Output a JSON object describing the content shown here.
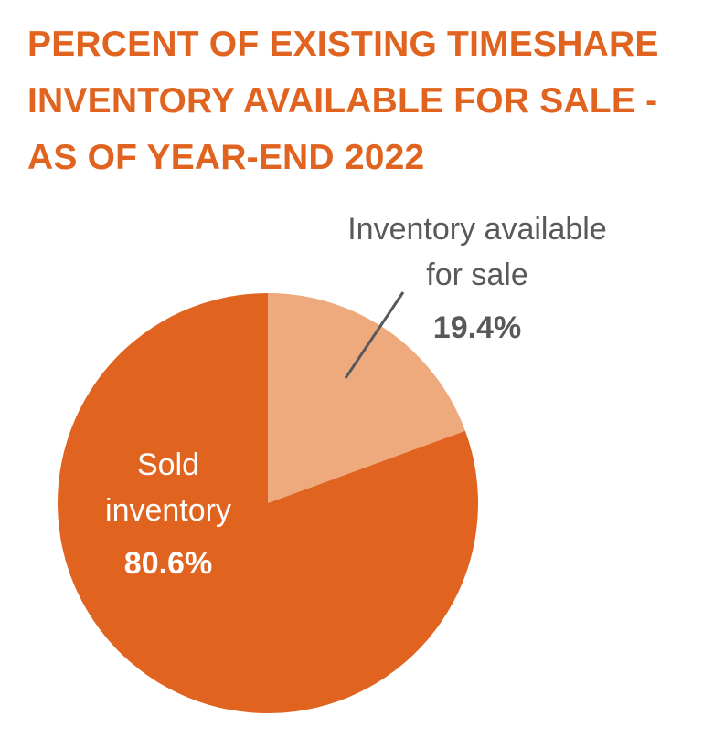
{
  "title_lines": [
    "PERCENT OF EXISTING TIMESHARE",
    "INVENTORY AVAILABLE FOR SALE -",
    "AS OF YEAR-END 2022"
  ],
  "chart_data": {
    "type": "pie",
    "title": "PERCENT OF EXISTING TIMESHARE INVENTORY AVAILABLE FOR SALE - AS OF YEAR-END 2022",
    "slices": [
      {
        "label": "Inventory available for sale",
        "label_lines": [
          "Inventory available",
          "for sale"
        ],
        "value": 19.4,
        "value_label": "19.4%",
        "color": "#EEA97C"
      },
      {
        "label": "Sold inventory",
        "label_lines": [
          "Sold",
          "inventory"
        ],
        "value": 80.6,
        "value_label": "80.6%",
        "color": "#E0631F"
      }
    ],
    "start_angle": "top, clockwise"
  }
}
